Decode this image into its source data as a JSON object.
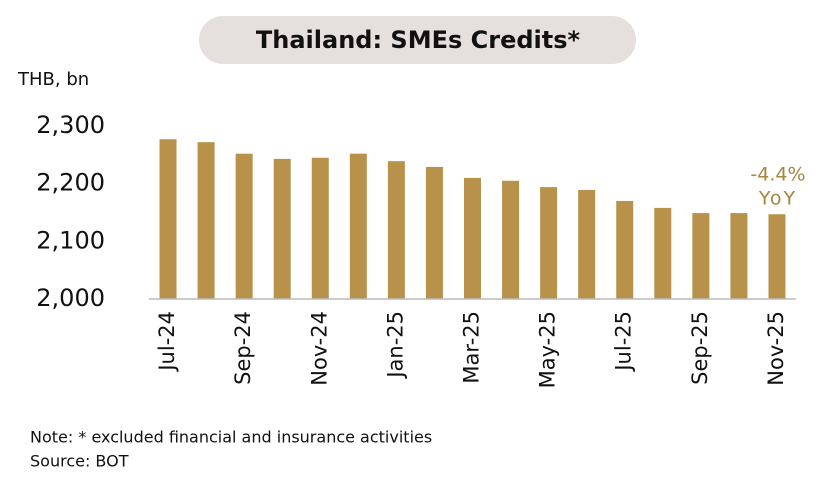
{
  "chart_data": {
    "type": "bar",
    "title": "Thailand: SMEs Credits*",
    "y_axis_label": "THB, bn",
    "categories": [
      "Jul-24",
      null,
      "Sep-24",
      null,
      "Nov-24",
      null,
      "Jan-25",
      null,
      "Mar-25",
      null,
      "May-25",
      null,
      "Jul-25",
      null,
      "Sep-25",
      null,
      "Nov-25"
    ],
    "values": [
      2277,
      2272,
      2252,
      2243,
      2245,
      2252,
      2239,
      2229,
      2210,
      2205,
      2194,
      2189,
      2170,
      2158,
      2149,
      2149,
      2147
    ],
    "color": "#b8914a",
    "ylim": [
      2000,
      2300
    ],
    "yticks": [
      {
        "value": 2000,
        "label": "2,000"
      },
      {
        "value": 2100,
        "label": "2,100"
      },
      {
        "value": 2200,
        "label": "2,200"
      },
      {
        "value": 2300,
        "label": "2,300"
      }
    ],
    "grid": false,
    "annotations": [
      "-4.4%",
      "YoY"
    ],
    "note": "Note: * excluded financial and insurance activities",
    "source": "Source: BOT"
  }
}
